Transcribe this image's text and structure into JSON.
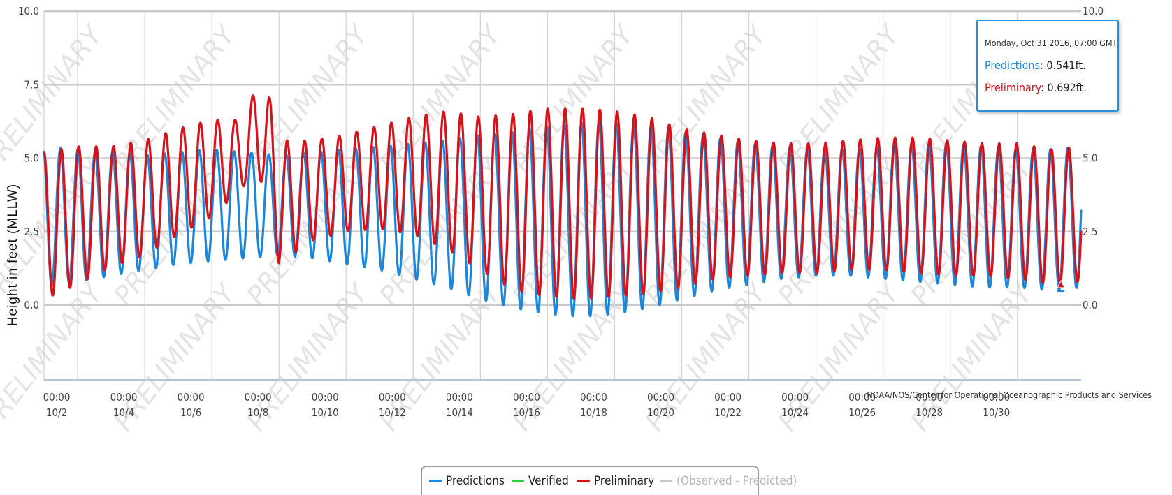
{
  "chart_data": {
    "type": "line",
    "ylabel": "Height in feet (MLLW)",
    "ylim": [
      -2.0,
      10.0
    ],
    "y_ticks": [
      "10.0",
      "7.5",
      "5.0",
      "2.5",
      "0.0"
    ],
    "y_ticks_right": [
      "10.0",
      "7.5",
      "5.0",
      "2.5",
      "0.0"
    ],
    "x_unit": "day of October 2016",
    "xlim": [
      1.0,
      31.9
    ],
    "x_ticks": [
      {
        "time": "00:00",
        "date": "10/2"
      },
      {
        "time": "00:00",
        "date": "10/4"
      },
      {
        "time": "00:00",
        "date": "10/6"
      },
      {
        "time": "00:00",
        "date": "10/8"
      },
      {
        "time": "00:00",
        "date": "10/10"
      },
      {
        "time": "00:00",
        "date": "10/12"
      },
      {
        "time": "00:00",
        "date": "10/14"
      },
      {
        "time": "00:00",
        "date": "10/16"
      },
      {
        "time": "00:00",
        "date": "10/18"
      },
      {
        "time": "00:00",
        "date": "10/20"
      },
      {
        "time": "00:00",
        "date": "10/22"
      },
      {
        "time": "00:00",
        "date": "10/24"
      },
      {
        "time": "00:00",
        "date": "10/26"
      },
      {
        "time": "00:00",
        "date": "10/28"
      },
      {
        "time": "00:00",
        "date": "10/30"
      }
    ],
    "grid": true,
    "legend_position": "bottom-center",
    "watermark": "PRELIMINARY",
    "credit": "NOAA/NOS/Center for Operational Oceanographic Products and Services",
    "series": [
      {
        "name": "Predictions",
        "color": "#1c86d8",
        "highs": [
          [
            1.0,
            5.4
          ],
          [
            2.0,
            5.3
          ],
          [
            3.0,
            5.2
          ],
          [
            4.0,
            5.1
          ],
          [
            5.0,
            5.2
          ],
          [
            6.0,
            5.3
          ],
          [
            7.0,
            5.2
          ],
          [
            8.0,
            5.1
          ],
          [
            9.0,
            5.2
          ],
          [
            10.0,
            5.3
          ],
          [
            11.0,
            5.4
          ],
          [
            12.0,
            5.5
          ],
          [
            13.0,
            5.6
          ],
          [
            14.0,
            5.8
          ],
          [
            15.0,
            5.9
          ],
          [
            16.0,
            6.1
          ],
          [
            17.0,
            6.2
          ],
          [
            18.0,
            6.2
          ],
          [
            19.0,
            6.1
          ],
          [
            20.0,
            5.9
          ],
          [
            21.0,
            5.7
          ],
          [
            22.0,
            5.5
          ],
          [
            23.0,
            5.4
          ],
          [
            24.0,
            5.3
          ],
          [
            25.0,
            5.3
          ],
          [
            26.0,
            5.4
          ],
          [
            27.0,
            5.5
          ],
          [
            28.0,
            5.5
          ],
          [
            29.0,
            5.4
          ],
          [
            30.0,
            5.3
          ],
          [
            31.0,
            5.3
          ],
          [
            31.9,
            5.4
          ]
        ],
        "lows": [
          [
            1.0,
            0.6
          ],
          [
            2.0,
            0.8
          ],
          [
            3.0,
            1.0
          ],
          [
            4.0,
            1.2
          ],
          [
            5.0,
            1.4
          ],
          [
            6.0,
            1.5
          ],
          [
            7.0,
            1.6
          ],
          [
            8.0,
            1.7
          ],
          [
            9.0,
            1.6
          ],
          [
            10.0,
            1.4
          ],
          [
            11.0,
            1.2
          ],
          [
            12.0,
            0.9
          ],
          [
            13.0,
            0.6
          ],
          [
            14.0,
            0.2
          ],
          [
            15.0,
            -0.1
          ],
          [
            16.0,
            -0.3
          ],
          [
            17.0,
            -0.4
          ],
          [
            18.0,
            -0.3
          ],
          [
            19.0,
            -0.1
          ],
          [
            20.0,
            0.2
          ],
          [
            21.0,
            0.5
          ],
          [
            22.0,
            0.7
          ],
          [
            23.0,
            0.9
          ],
          [
            24.0,
            1.0
          ],
          [
            25.0,
            1.0
          ],
          [
            26.0,
            0.9
          ],
          [
            27.0,
            0.8
          ],
          [
            28.0,
            0.7
          ],
          [
            29.0,
            0.6
          ],
          [
            30.0,
            0.6
          ],
          [
            31.0,
            0.5
          ],
          [
            31.9,
            0.6
          ]
        ]
      },
      {
        "name": "Verified",
        "color": "#2ecc40",
        "highs": [],
        "lows": []
      },
      {
        "name": "Preliminary",
        "color": "#d6121b",
        "highs": [
          [
            1.0,
            5.2
          ],
          [
            2.0,
            5.4
          ],
          [
            3.0,
            5.4
          ],
          [
            4.0,
            5.6
          ],
          [
            5.0,
            6.0
          ],
          [
            6.0,
            6.3
          ],
          [
            7.0,
            6.3
          ],
          [
            7.5,
            8.2
          ],
          [
            8.0,
            5.6
          ],
          [
            9.0,
            5.6
          ],
          [
            10.0,
            5.8
          ],
          [
            11.0,
            6.1
          ],
          [
            12.0,
            6.4
          ],
          [
            13.0,
            6.6
          ],
          [
            14.0,
            6.4
          ],
          [
            15.0,
            6.5
          ],
          [
            16.0,
            6.7
          ],
          [
            17.0,
            6.7
          ],
          [
            18.0,
            6.6
          ],
          [
            19.0,
            6.4
          ],
          [
            20.0,
            6.0
          ],
          [
            21.0,
            5.8
          ],
          [
            22.0,
            5.6
          ],
          [
            23.0,
            5.5
          ],
          [
            24.0,
            5.5
          ],
          [
            25.0,
            5.6
          ],
          [
            26.0,
            5.7
          ],
          [
            27.0,
            5.7
          ],
          [
            28.0,
            5.6
          ],
          [
            29.0,
            5.5
          ],
          [
            30.0,
            5.5
          ],
          [
            31.0,
            5.3
          ],
          [
            31.9,
            5.4
          ]
        ],
        "lows": [
          [
            1.0,
            0.2
          ],
          [
            2.0,
            0.7
          ],
          [
            3.0,
            1.3
          ],
          [
            4.0,
            1.7
          ],
          [
            5.0,
            2.4
          ],
          [
            6.0,
            3.0
          ],
          [
            7.0,
            4.1
          ],
          [
            7.5,
            4.2
          ],
          [
            8.0,
            1.4
          ],
          [
            9.0,
            2.2
          ],
          [
            10.0,
            2.5
          ],
          [
            11.0,
            2.6
          ],
          [
            12.0,
            2.4
          ],
          [
            13.0,
            1.9
          ],
          [
            14.0,
            1.2
          ],
          [
            15.0,
            0.5
          ],
          [
            16.0,
            0.3
          ],
          [
            17.0,
            0.2
          ],
          [
            18.0,
            0.3
          ],
          [
            19.0,
            0.4
          ],
          [
            20.0,
            0.6
          ],
          [
            21.0,
            0.9
          ],
          [
            22.0,
            1.0
          ],
          [
            23.0,
            1.1
          ],
          [
            24.0,
            1.1
          ],
          [
            25.0,
            1.2
          ],
          [
            26.0,
            1.2
          ],
          [
            27.0,
            1.1
          ],
          [
            28.0,
            1.0
          ],
          [
            29.0,
            1.0
          ],
          [
            30.0,
            0.9
          ],
          [
            31.0,
            0.7
          ],
          [
            31.9,
            0.8
          ]
        ]
      },
      {
        "name": "(Observed - Predicted)",
        "color": "#c8c8c8",
        "highs": [],
        "lows": []
      }
    ]
  },
  "tooltip": {
    "date": "Monday, Oct 31 2016, 07:00 GMT",
    "rows": [
      {
        "label": "Predictions",
        "value": "0.541ft.",
        "color": "#1c86d8"
      },
      {
        "label": "Preliminary",
        "value": "0.692ft.",
        "color": "#d6121b"
      }
    ]
  },
  "marker": {
    "series": "Preliminary",
    "day": 31.3,
    "value": 0.692
  }
}
